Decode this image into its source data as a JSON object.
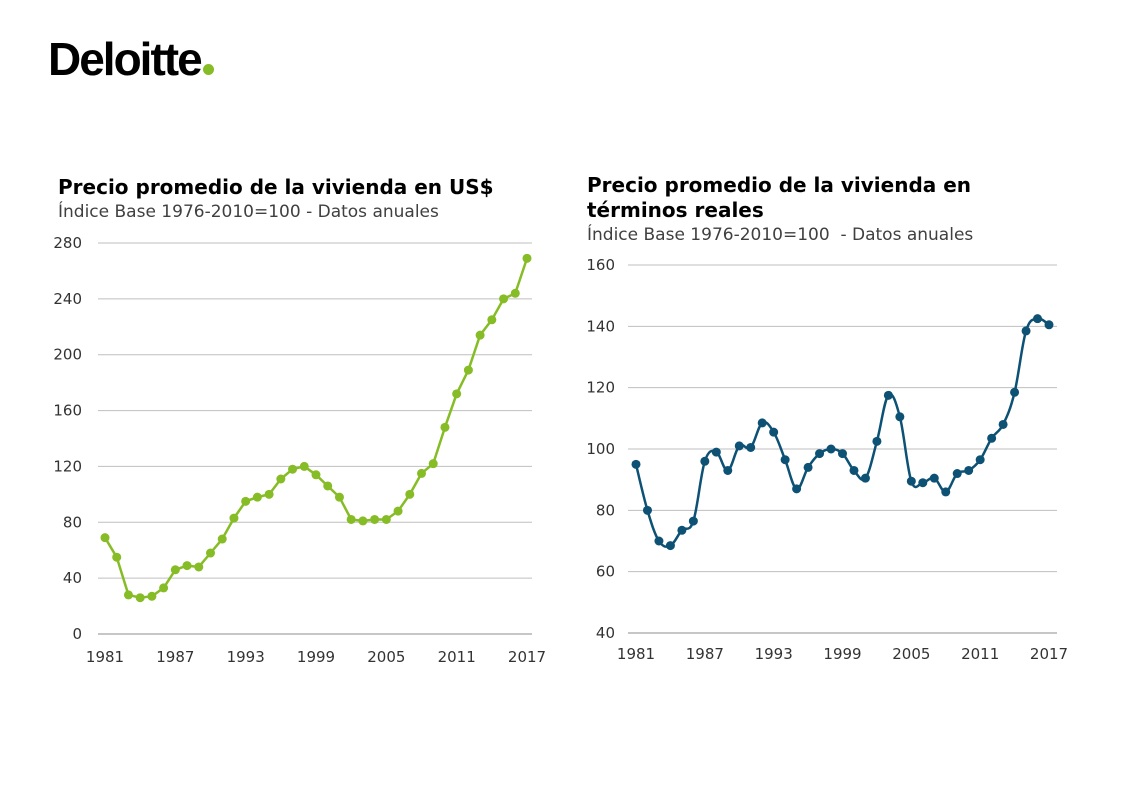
{
  "brand": {
    "name": "Deloitte",
    "dot_color": "#86BC25"
  },
  "chart_data": [
    {
      "type": "line",
      "title": "Precio promedio de la vivienda en US$",
      "subtitle": "Índice Base 1976-2010=100 - Datos anuales",
      "color": "#86BC25",
      "x": [
        1981,
        1982,
        1983,
        1984,
        1985,
        1986,
        1987,
        1988,
        1989,
        1990,
        1991,
        1992,
        1993,
        1994,
        1995,
        1996,
        1997,
        1998,
        1999,
        2000,
        2001,
        2002,
        2003,
        2004,
        2005,
        2006,
        2007,
        2008,
        2009,
        2010,
        2011,
        2012,
        2013,
        2014,
        2015,
        2016,
        2017
      ],
      "values": [
        69,
        55,
        28,
        26,
        27,
        33,
        46,
        49,
        48,
        58,
        68,
        83,
        95,
        98,
        100,
        111,
        118,
        120,
        114,
        106,
        98,
        82,
        81,
        82,
        82,
        88,
        100,
        115,
        122,
        148,
        172,
        189,
        214,
        225,
        240,
        244,
        269
      ],
      "xticks": [
        "1981",
        "1987",
        "1993",
        "1999",
        "2005",
        "2011",
        "2017"
      ],
      "yticks": [
        "0",
        "40",
        "80",
        "120",
        "160",
        "200",
        "240",
        "280"
      ],
      "ylim": [
        0,
        280
      ],
      "xlim": [
        1981,
        2017
      ],
      "grid": true,
      "smooth": false
    },
    {
      "type": "line",
      "title": "Precio promedio de la vivienda en términos reales",
      "subtitle": "Índice Base 1976-2010=100  - Datos anuales",
      "color": "#0D5174",
      "x": [
        1981,
        1982,
        1983,
        1984,
        1985,
        1986,
        1987,
        1988,
        1989,
        1990,
        1991,
        1992,
        1993,
        1994,
        1995,
        1996,
        1997,
        1998,
        1999,
        2000,
        2001,
        2002,
        2003,
        2004,
        2005,
        2006,
        2007,
        2008,
        2009,
        2010,
        2011,
        2012,
        2013,
        2014,
        2015,
        2016,
        2017
      ],
      "values": [
        95,
        80,
        70,
        68.5,
        73.5,
        76.5,
        96,
        99,
        93,
        101,
        100.5,
        108.5,
        105.5,
        96.5,
        87,
        94,
        98.5,
        100,
        98.5,
        93,
        90.5,
        102.5,
        117.5,
        110.5,
        89.5,
        89,
        90.5,
        86,
        92,
        93,
        96.5,
        103.5,
        108,
        118.5,
        138.5,
        142.5,
        140.5
      ],
      "xticks": [
        "1981",
        "1987",
        "1993",
        "1999",
        "2005",
        "2011",
        "2017"
      ],
      "yticks": [
        "40",
        "60",
        "80",
        "100",
        "120",
        "140",
        "160"
      ],
      "ylim": [
        40,
        160
      ],
      "xlim": [
        1981,
        2017
      ],
      "grid": true,
      "smooth": true
    }
  ]
}
